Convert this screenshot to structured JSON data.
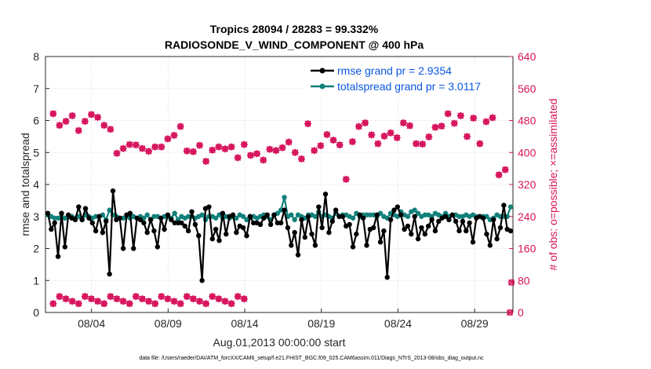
{
  "chart_data": {
    "type": "line",
    "title_line1": "Tropics 28094 / 28283 = 99.332%",
    "title_line2": "RADIOSONDE_V_WIND_COMPONENT @ 400 hPa",
    "xlabel": "Aug.01,2013 00:00:00 start",
    "ylabel": "rmse and totalspread",
    "y2label": "# of obs: o=possible; ×=assimilated",
    "footer": "data file: /Users/raeder/DAI/ATM_forcXX/CAM6_setup/f.e21.FHIST_BGC.f09_025.CAM6assim.011/Diags_NTrS_2013-08/obs_diag_output.nc",
    "xlim": [
      0,
      61
    ],
    "ylim": [
      0,
      8
    ],
    "y2lim": [
      0,
      640
    ],
    "x_ticks": [
      6,
      16,
      26,
      36,
      46,
      56
    ],
    "x_tick_labels": [
      "08/04",
      "08/09",
      "08/14",
      "08/19",
      "08/24",
      "08/29"
    ],
    "y_ticks": [
      "0",
      "1",
      "2",
      "3",
      "4",
      "5",
      "6",
      "7",
      "8"
    ],
    "y2_ticks": [
      "0",
      "80",
      "160",
      "240",
      "320",
      "400",
      "480",
      "560",
      "640"
    ],
    "series": [
      {
        "name": "rmse grand pr = 2.9354",
        "color": "#000000",
        "values": [
          3.1,
          2.6,
          2.8,
          1.75,
          3.1,
          2.05,
          3.05,
          2.95,
          2.9,
          3.3,
          2.9,
          3.25,
          2.95,
          2.8,
          2.55,
          3.0,
          2.5,
          2.85,
          1.2,
          3.8,
          2.9,
          2.95,
          2.0,
          3.05,
          3.1,
          2.0,
          2.95,
          2.9,
          2.8,
          2.5,
          2.9,
          2.55,
          2.05,
          2.95,
          2.6,
          3.05,
          2.9,
          2.8,
          2.8,
          2.8,
          2.7,
          2.55,
          3.15,
          2.75,
          2.4,
          1.0,
          3.25,
          3.3,
          2.3,
          2.6,
          2.25,
          3.1,
          2.45,
          3.0,
          3.05,
          2.5,
          2.7,
          2.65,
          2.4,
          3.0,
          2.8,
          2.8,
          2.75,
          2.95,
          3.05,
          2.75,
          3.05,
          2.8,
          2.8,
          3.2,
          2.65,
          2.1,
          2.5,
          1.8,
          2.9,
          2.35,
          3.0,
          2.45,
          2.1,
          3.3,
          2.65,
          3.7,
          2.5,
          2.85,
          3.2,
          3.0,
          3.0,
          2.7,
          2.75,
          2.05,
          2.45,
          3.05,
          2.95,
          2.1,
          2.6,
          2.65,
          3.05,
          2.2,
          2.55,
          1.1,
          2.9,
          3.2,
          3.3,
          3.05,
          2.6,
          2.7,
          2.45,
          3.0,
          2.3,
          2.65,
          2.45,
          2.7,
          2.9,
          2.55,
          2.85,
          2.95,
          3.0,
          2.9,
          3.05,
          2.85,
          2.55,
          2.85,
          2.55,
          2.8,
          2.2,
          2.95,
          3.0,
          2.95,
          2.45,
          2.1,
          2.9,
          2.3,
          2.65,
          3.35,
          2.6,
          2.55
        ]
      },
      {
        "name": "totalspread grand pr = 3.0117",
        "color": "#12807a",
        "values": [
          3.05,
          3.0,
          2.95,
          2.95,
          3.0,
          2.95,
          3.0,
          3.0,
          2.95,
          3.0,
          2.9,
          3.05,
          3.0,
          2.95,
          3.0,
          3.0,
          3.05,
          2.9,
          3.2,
          3.05,
          3.0,
          2.95,
          2.95,
          3.0,
          2.95,
          3.0,
          2.95,
          3.0,
          2.95,
          3.05,
          2.9,
          3.0,
          3.0,
          2.95,
          3.0,
          3.0,
          2.95,
          3.1,
          2.9,
          3.0,
          2.95,
          3.0,
          3.0,
          2.95,
          3.0,
          3.05,
          2.9,
          3.0,
          3.0,
          2.95,
          3.05,
          2.95,
          3.0,
          2.95,
          3.0,
          2.95,
          3.05,
          3.0,
          2.9,
          3.0,
          3.0,
          2.95,
          3.0,
          3.05,
          3.0,
          2.9,
          3.05,
          3.1,
          3.2,
          3.6,
          3.0,
          3.05,
          2.9,
          3.05,
          3.0,
          2.95,
          3.05,
          3.05,
          3.0,
          3.15,
          3.0,
          3.05,
          3.0,
          2.95,
          3.1,
          3.0,
          3.05,
          3.05,
          3.0,
          2.95,
          3.1,
          3.0,
          3.05,
          3.05,
          3.05,
          3.05,
          3.0,
          3.1,
          3.0,
          2.95,
          3.1,
          3.05,
          3.0,
          3.15,
          3.05,
          3.0,
          3.15,
          3.2,
          3.1,
          3.0,
          3.05,
          3.05,
          3.0,
          3.1,
          3.05,
          3.0,
          3.1,
          3.0,
          3.05,
          3.05,
          3.0,
          3.0,
          3.05,
          3.0,
          3.05,
          3.0,
          3.0,
          3.0,
          3.0,
          2.9,
          2.95,
          3.05,
          3.0,
          3.0,
          3.0,
          3.3
        ]
      }
    ],
    "obs_possible": [
      497,
      468,
      478,
      492,
      455,
      478,
      495,
      488,
      468,
      458,
      398,
      410,
      420,
      419,
      410,
      403,
      414,
      414,
      434,
      443,
      465,
      404,
      402,
      418,
      378,
      406,
      414,
      409,
      414,
      387,
      420,
      393,
      397,
      381,
      408,
      405,
      412,
      426,
      400,
      384,
      472,
      405,
      417,
      445,
      431,
      419,
      333,
      427,
      465,
      474,
      444,
      422,
      441,
      449,
      437,
      474,
      467,
      422,
      421,
      439,
      463,
      466,
      497,
      473,
      492,
      440,
      486,
      422,
      477,
      487,
      344,
      357
    ]
  }
}
